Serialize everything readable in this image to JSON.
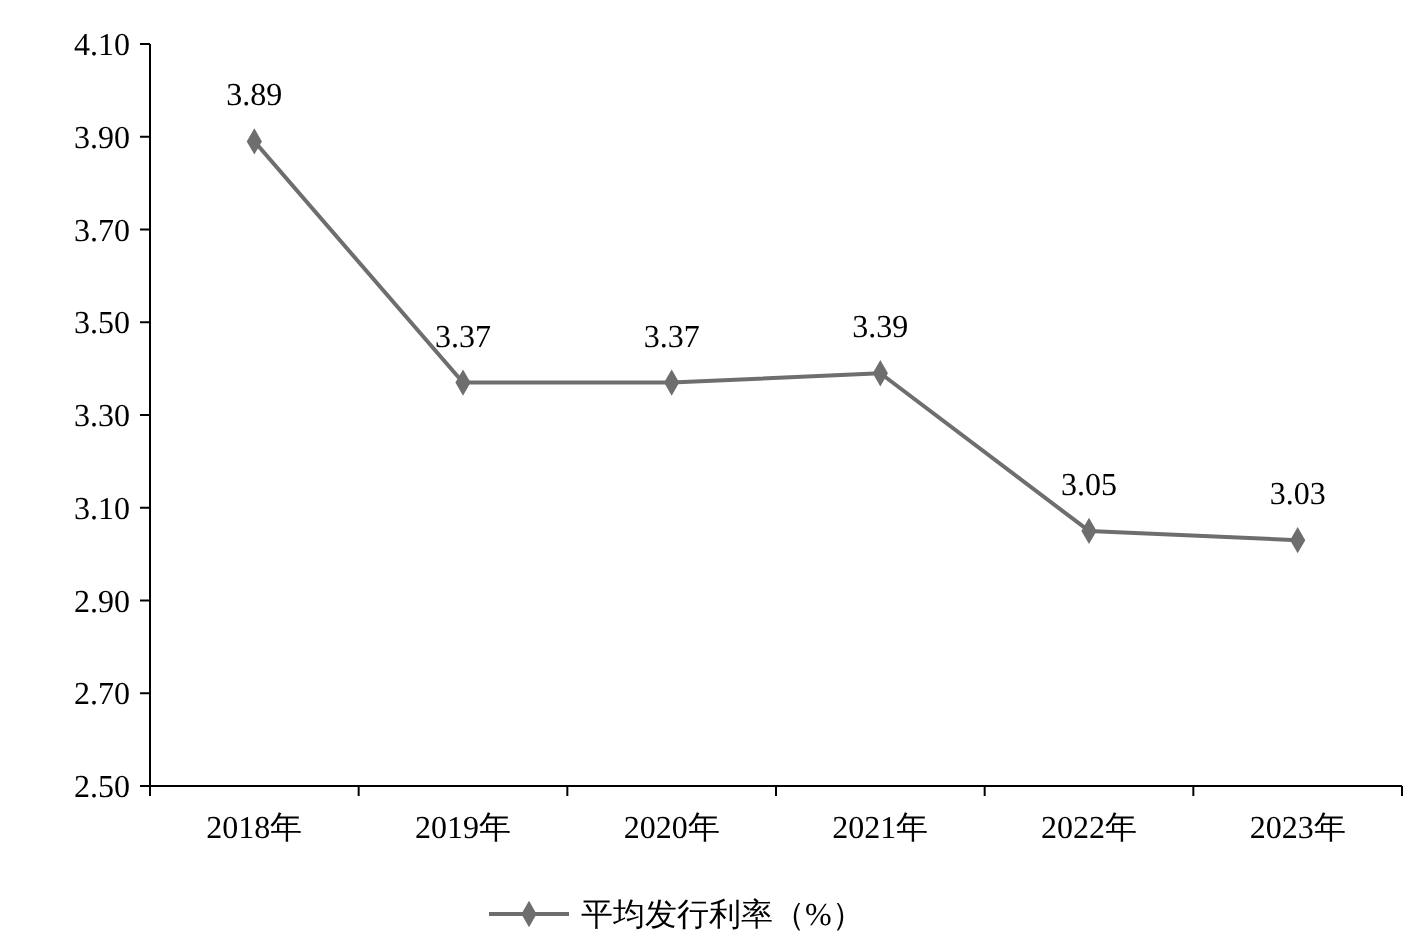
{
  "chart_data": {
    "type": "line",
    "categories": [
      "2018年",
      "2019年",
      "2020年",
      "2021年",
      "2022年",
      "2023年"
    ],
    "series": [
      {
        "name": "平均发行利率（%）",
        "color": "#6e6e6e",
        "values": [
          3.89,
          3.37,
          3.37,
          3.39,
          3.05,
          3.03
        ]
      }
    ],
    "ylim": [
      2.5,
      4.1
    ],
    "yticks": [
      {
        "value": 2.5,
        "label": "2.50"
      },
      {
        "value": 2.7,
        "label": "2.70"
      },
      {
        "value": 2.9,
        "label": "2.90"
      },
      {
        "value": 3.1,
        "label": "3.10"
      },
      {
        "value": 3.3,
        "label": "3.30"
      },
      {
        "value": 3.5,
        "label": "3.50"
      },
      {
        "value": 3.7,
        "label": "3.70"
      },
      {
        "value": 3.9,
        "label": "3.90"
      },
      {
        "value": 4.1,
        "label": "4.10"
      }
    ],
    "data_labels": true,
    "legend": "bottom",
    "marker": "diamond",
    "line_style": "solid",
    "grid": false
  }
}
